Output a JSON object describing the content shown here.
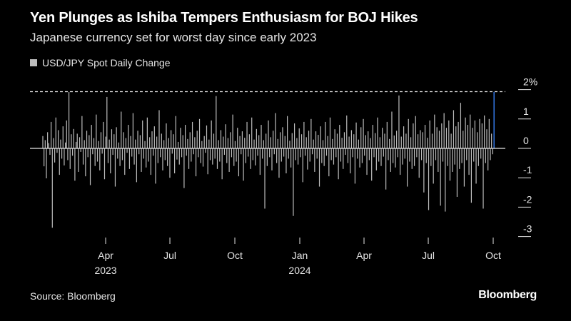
{
  "header": {
    "title": "Yen Plunges as Ishiba Tempers Enthusiasm for BOJ Hikes",
    "subtitle": "Japanese currency set for worst day since early 2023",
    "legend_label": "USD/JPY Spot Daily Change"
  },
  "footer": {
    "source": "Source: Bloomberg",
    "brand": "Bloomberg"
  },
  "colors": {
    "bar": "#bdbdbd",
    "highlight": "#2f6fd6",
    "background": "#000000",
    "text": "#ffffff"
  },
  "chart_data": {
    "type": "bar",
    "ylabel": "",
    "ylim": [
      -3.3,
      2.2
    ],
    "y_ticks": [
      {
        "value": 2,
        "label": "2%"
      },
      {
        "value": 1,
        "label": "1"
      },
      {
        "value": 0,
        "label": "0"
      },
      {
        "value": -1,
        "label": "-1"
      },
      {
        "value": -2,
        "label": "-2"
      },
      {
        "value": -3,
        "label": "-3"
      }
    ],
    "reference_line": {
      "value": 1.93,
      "style": "dashed"
    },
    "x_range": [
      "2023-01-02",
      "2024-10-02"
    ],
    "x_ticks": [
      {
        "date": "2023-04-01",
        "label": "Apr",
        "sublabel": "2023"
      },
      {
        "date": "2023-07-01",
        "label": "Jul",
        "sublabel": ""
      },
      {
        "date": "2023-10-01",
        "label": "Oct",
        "sublabel": ""
      },
      {
        "date": "2024-01-01",
        "label": "Jan",
        "sublabel": "2024"
      },
      {
        "date": "2024-04-01",
        "label": "Apr",
        "sublabel": ""
      },
      {
        "date": "2024-07-01",
        "label": "Jul",
        "sublabel": ""
      },
      {
        "date": "2024-10-01",
        "label": "Oct",
        "sublabel": ""
      }
    ],
    "series": [
      {
        "values": [
          0.42,
          -0.61,
          0.28,
          -1.02,
          0.55,
          0.18,
          -0.22,
          0.9,
          -2.7,
          0.35,
          -0.48,
          1.05,
          -0.15,
          0.62,
          -0.9,
          0.3,
          -0.35,
          0.75,
          -0.58,
          0.2,
          0.95,
          -0.4,
          1.92,
          -0.7,
          0.48,
          -0.25,
          0.66,
          -1.1,
          0.22,
          0.5,
          -0.8,
          0.38,
          -0.12,
          1.1,
          -0.55,
          0.28,
          -0.95,
          0.6,
          -0.3,
          0.45,
          -1.25,
          0.8,
          -0.2,
          0.35,
          -0.6,
          1.15,
          -0.45,
          0.25,
          -0.75,
          0.55,
          -0.18,
          0.9,
          -1.05,
          0.4,
          1.75,
          -0.5,
          0.3,
          -0.85,
          0.65,
          -0.22,
          0.48,
          -1.3,
          0.72,
          -0.35,
          0.2,
          -0.6,
          1.25,
          -0.4,
          0.55,
          -0.9,
          0.35,
          -0.15,
          0.8,
          -0.7,
          0.42,
          -0.28,
          1.2,
          -0.55,
          0.3,
          -1.15,
          0.6,
          -0.2,
          0.45,
          -0.8,
          0.95,
          -0.35,
          0.25,
          -0.65,
          1.05,
          -0.45,
          0.38,
          -0.9,
          0.58,
          -0.25,
          0.75,
          -1.2,
          0.4,
          -0.5,
          1.3,
          -0.3,
          0.5,
          -0.75,
          0.28,
          -0.4,
          0.85,
          -0.6,
          0.35,
          -1.0,
          0.62,
          -0.18,
          0.48,
          -0.85,
          1.1,
          -0.38,
          0.22,
          -0.55,
          0.7,
          -0.3,
          0.45,
          -1.35,
          0.8,
          -0.25,
          0.32,
          -0.7,
          0.55,
          -0.45,
          0.9,
          -0.2,
          0.38,
          -0.95,
          0.6,
          -0.3,
          1.0,
          -0.5,
          0.25,
          -0.62,
          0.42,
          -0.15,
          0.78,
          -0.88,
          0.3,
          -0.4,
          0.95,
          -0.55,
          0.5,
          -0.35,
          1.78,
          -0.7,
          0.28,
          -0.45,
          0.62,
          -1.05,
          0.4,
          -0.22,
          0.82,
          -0.5,
          0.35,
          -0.8,
          0.55,
          -0.3,
          1.15,
          -0.6,
          0.25,
          -0.45,
          0.7,
          -0.95,
          0.42,
          -0.2,
          0.58,
          -1.1,
          0.36,
          -0.5,
          0.9,
          -0.28,
          0.48,
          -0.7,
          1.05,
          -0.4,
          0.3,
          -0.58,
          0.66,
          -0.25,
          0.45,
          -0.9,
          0.8,
          -0.35,
          0.28,
          -2.05,
          0.5,
          -0.6,
          0.95,
          -0.3,
          0.38,
          -0.75,
          0.6,
          -0.2,
          1.2,
          -0.5,
          0.32,
          -1.0,
          0.55,
          -0.45,
          0.72,
          -0.28,
          0.42,
          -0.85,
          1.1,
          -0.35,
          0.26,
          -0.65,
          0.52,
          -2.3,
          0.85,
          -0.4,
          0.35,
          -0.55,
          0.68,
          -0.3,
          0.48,
          -1.15,
          0.9,
          -0.25,
          0.38,
          -0.72,
          0.6,
          -0.45,
          1.0,
          -0.2,
          0.3,
          -0.8,
          0.58,
          -0.35,
          0.46,
          -1.3,
          0.75,
          -0.5,
          0.28,
          -0.6,
          0.9,
          -0.25,
          0.42,
          -0.95,
          1.05,
          -0.4,
          0.32,
          -0.55,
          0.65,
          -0.3,
          0.5,
          -1.05,
          0.8,
          -0.45,
          0.36,
          -0.7,
          0.55,
          -0.22,
          1.12,
          -0.5,
          0.4,
          -0.85,
          0.62,
          -0.3,
          0.48,
          -1.2,
          0.88,
          -0.35,
          0.3,
          -0.65,
          0.72,
          -0.5,
          1.0,
          -0.25,
          0.45,
          -0.9,
          0.58,
          -0.4,
          0.35,
          -1.1,
          0.8,
          -0.3,
          0.52,
          -0.75,
          1.05,
          -0.45,
          0.38,
          -0.6,
          0.7,
          -0.28,
          0.5,
          -1.4,
          0.9,
          -0.4,
          0.32,
          -0.8,
          1.25,
          -0.5,
          0.44,
          -0.65,
          0.6,
          -0.3,
          1.8,
          -0.9,
          0.4,
          -0.55,
          0.75,
          -0.35,
          0.5,
          -1.3,
          1.0,
          -0.45,
          0.38,
          -0.7,
          0.85,
          -0.6,
          1.1,
          -0.3,
          0.48,
          -1.0,
          0.62,
          -0.4,
          0.55,
          -1.5,
          0.8,
          -0.5,
          0.36,
          -2.1,
          0.95,
          -0.6,
          0.5,
          -1.2,
          1.15,
          -0.4,
          0.72,
          -0.8,
          0.6,
          -1.95,
          0.85,
          -0.45,
          1.2,
          -2.15,
          0.7,
          -0.6,
          0.95,
          -1.1,
          0.5,
          -0.8,
          1.3,
          -0.55,
          0.75,
          -1.65,
          0.9,
          -0.7,
          1.55,
          -0.5,
          0.6,
          -1.3,
          1.05,
          -0.4,
          0.8,
          -0.9,
          1.15,
          -1.85,
          0.7,
          -0.45,
          0.95,
          -1.2,
          0.55,
          -0.6,
          1.0,
          -0.35,
          0.85,
          -2.05,
          1.12,
          -0.5,
          0.65,
          -0.75,
          1.0,
          -0.4,
          0.5,
          -0.2,
          1.92
        ]
      }
    ],
    "highlight_last": true
  }
}
